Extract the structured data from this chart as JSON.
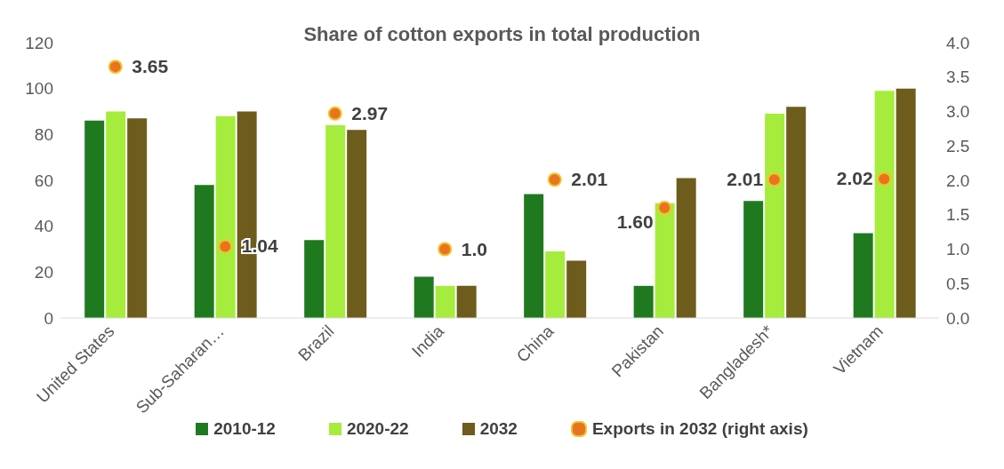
{
  "chart_data": {
    "type": "bar",
    "title": "Share of cotton exports in total production",
    "categories": [
      "United States",
      "Sub-Saharan…",
      "Brazil",
      "India",
      "China",
      "Pakistan",
      "Bangladesh*",
      "Vietnam"
    ],
    "series": [
      {
        "name": "2010-12",
        "color": "#1f7a1f",
        "values": [
          86,
          58,
          34,
          18,
          54,
          14,
          51,
          37
        ]
      },
      {
        "name": "2020-22",
        "color": "#a6ec3c",
        "values": [
          90,
          88,
          84,
          14,
          29,
          50,
          89,
          99
        ]
      },
      {
        "name": "2032",
        "color": "#6e5c1c",
        "values": [
          87,
          90,
          82,
          14,
          25,
          61,
          92,
          100
        ]
      },
      {
        "name": "Exports in 2032 (right axis)",
        "type": "scatter",
        "axis": "y2",
        "color": "#e8741e",
        "values": [
          3.65,
          1.04,
          2.97,
          1.0,
          2.01,
          1.6,
          2.01,
          2.02
        ],
        "value_labels": [
          "3.65",
          "1.04",
          "2.97",
          "1.0",
          "2.01",
          "1.60",
          "2.01",
          "2.02"
        ]
      }
    ],
    "ylim": [
      0,
      120
    ],
    "yticks": [
      0,
      20,
      40,
      60,
      80,
      100,
      120
    ],
    "y2lim": [
      0,
      4
    ],
    "y2ticks": [
      {
        "value": 0,
        "label": "0.0"
      },
      {
        "value": 0.5,
        "label": "0.5"
      },
      {
        "value": 1,
        "label": "1.0"
      },
      {
        "value": 1.5,
        "label": "1.5"
      },
      {
        "value": 2,
        "label": "2.0"
      },
      {
        "value": 2.5,
        "label": "2.5"
      },
      {
        "value": 3,
        "label": "3.0"
      },
      {
        "value": 3.5,
        "label": "3.5"
      },
      {
        "value": 4,
        "label": "4.0"
      }
    ],
    "grid": false,
    "legend": "bottom",
    "marker": "circle"
  }
}
